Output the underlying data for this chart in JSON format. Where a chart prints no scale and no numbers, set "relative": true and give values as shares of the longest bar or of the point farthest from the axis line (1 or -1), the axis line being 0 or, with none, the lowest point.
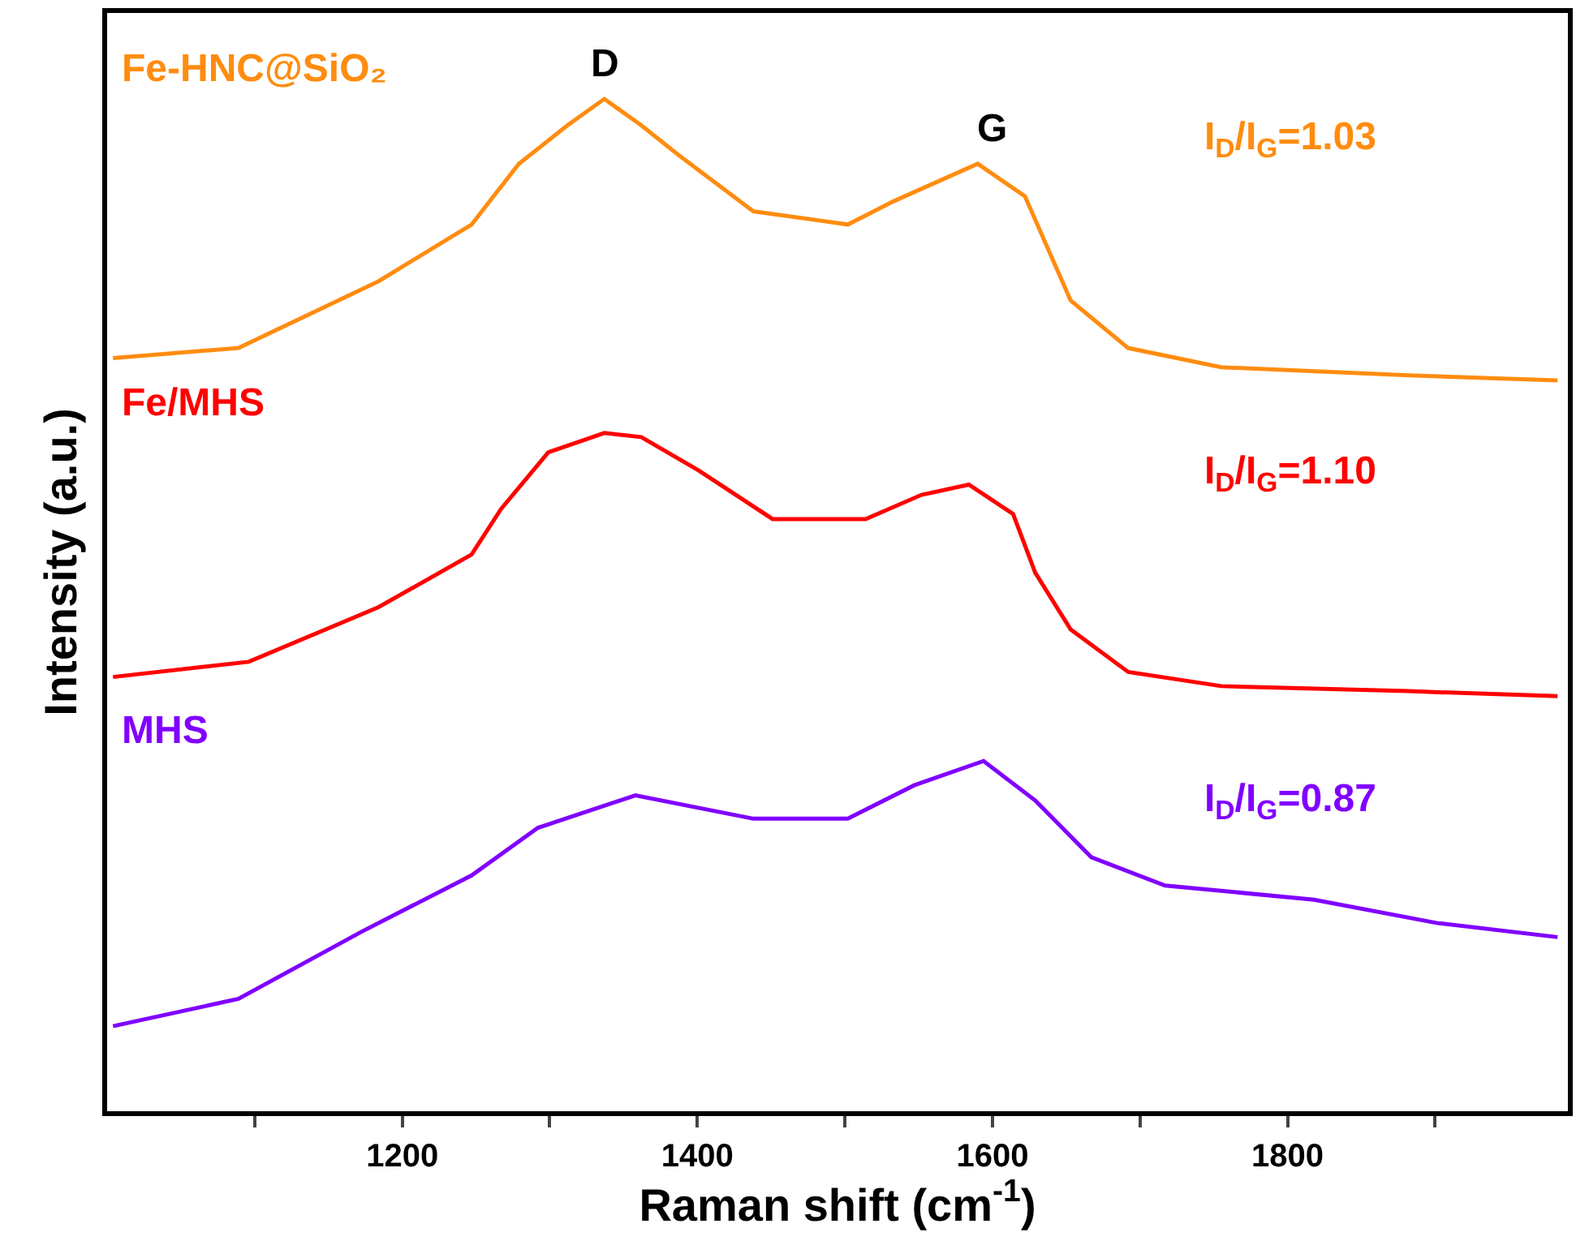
{
  "chart_data": {
    "type": "line",
    "relative": true,
    "xlabel": "Raman shift (cm$^{-1}$)",
    "ylabel": "Intensity (a.u.)",
    "xlim": [
      1000,
      1990
    ],
    "xticks": [
      {
        "value": 1100,
        "label": null
      },
      1200,
      {
        "value": 1300,
        "label": null
      },
      1400,
      {
        "value": 1500,
        "label": null
      },
      1600,
      {
        "value": 1700,
        "label": null
      },
      1800,
      {
        "value": 1900,
        "label": null
      }
    ],
    "grid": false,
    "legend": false,
    "marker": "none",
    "line_style": "solid",
    "series": [
      {
        "name": "Fe-HNC@SiO₂",
        "color": "#ff8c10",
        "x": [
          1004,
          1089,
          1184,
          1247,
          1279,
          1312,
          1337,
          1362,
          1387,
          1438,
          1502,
          1533,
          1590,
          1622,
          1653,
          1692,
          1755,
          1882,
          1983
        ],
        "values": [
          0.744,
          0.754,
          0.82,
          0.876,
          0.936,
          0.974,
          1.0,
          0.974,
          0.945,
          0.889,
          0.876,
          0.899,
          0.936,
          0.904,
          0.801,
          0.754,
          0.735,
          0.727,
          0.722
        ]
      },
      {
        "name": "Fe/MHS",
        "color": "#ff0000",
        "x": [
          1004,
          1096,
          1184,
          1247,
          1267,
          1299,
          1337,
          1362,
          1401,
          1451,
          1514,
          1552,
          1584,
          1614,
          1629,
          1653,
          1692,
          1755,
          1882,
          1983
        ],
        "values": [
          0.429,
          0.444,
          0.498,
          0.55,
          0.595,
          0.651,
          0.67,
          0.666,
          0.633,
          0.585,
          0.585,
          0.609,
          0.619,
          0.59,
          0.532,
          0.476,
          0.434,
          0.42,
          0.415,
          0.41
        ]
      },
      {
        "name": "MHS",
        "color": "#8000ff",
        "x": [
          1004,
          1089,
          1172,
          1247,
          1292,
          1358,
          1438,
          1502,
          1547,
          1594,
          1629,
          1667,
          1717,
          1818,
          1901,
          1983
        ],
        "values": [
          0.084,
          0.111,
          0.177,
          0.233,
          0.28,
          0.312,
          0.289,
          0.289,
          0.322,
          0.346,
          0.307,
          0.251,
          0.223,
          0.209,
          0.186,
          0.172
        ]
      }
    ],
    "annotations": [
      {
        "text": "D",
        "x": 1337,
        "y": 1.0
      },
      {
        "text": "G",
        "x": 1600,
        "y": 0.936
      },
      "I$_{D}$/I$_{G}$=1.03",
      "I$_{D}$/I$_{G}$=1.10",
      "I$_{D}$/I$_{G}$=0.87"
    ]
  }
}
